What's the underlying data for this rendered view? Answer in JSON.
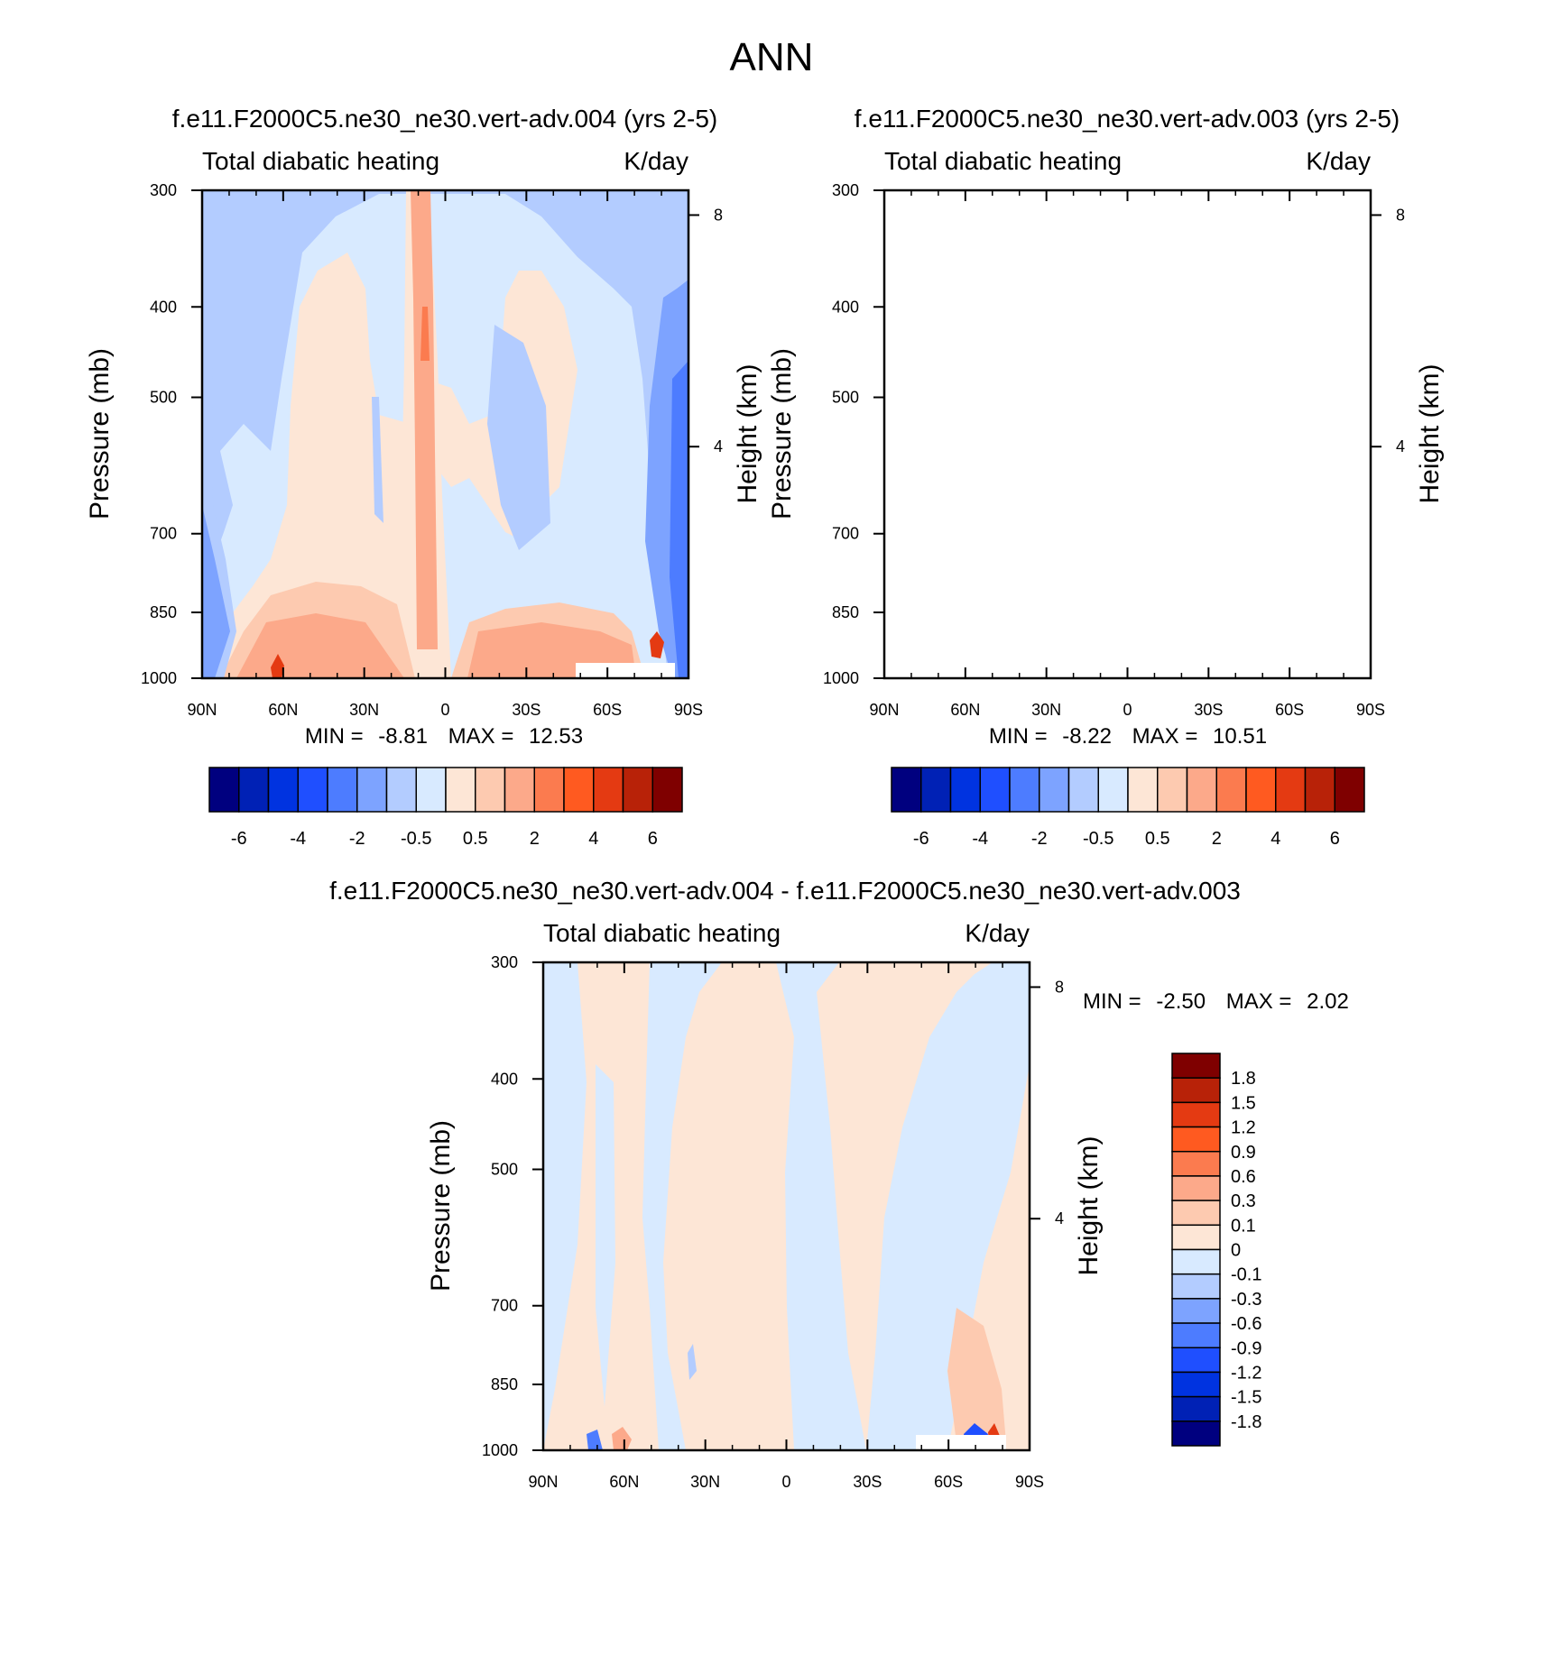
{
  "page_title": "ANN",
  "colors": {
    "main_scale": [
      "#00007f",
      "#0021b5",
      "#0033e0",
      "#1f4fff",
      "#4d7cff",
      "#7da3ff",
      "#b3ccff",
      "#d8eaff",
      "#fde6d6",
      "#fdcab0",
      "#fca98a",
      "#fb7b4f",
      "#ff5a20",
      "#e43a12",
      "#b82208",
      "#7f0000"
    ],
    "diff_scale": [
      "#00007f",
      "#0021b5",
      "#0033e0",
      "#1f4fff",
      "#4d7cff",
      "#7da3ff",
      "#b3ccff",
      "#d8eaff",
      "#fde6d6",
      "#fdcab0",
      "#fca98a",
      "#fb7b4f",
      "#ff5a20",
      "#e43a12",
      "#b82208",
      "#7f0000"
    ]
  },
  "chart_data": [
    {
      "type": "heatmap",
      "title": "f.e11.F2000C5.ne30_ne30.vert-adv.004 (yrs 2-5)",
      "left_label": "Total diabatic heating",
      "right_label": "K/day",
      "ylabel": "Pressure (mb)",
      "ylabel_right": "Height (km)",
      "x_ticks": [
        "90N",
        "60N",
        "30N",
        "0",
        "30S",
        "60S",
        "90S"
      ],
      "x_range": [
        90,
        -90
      ],
      "y_ticks": [
        "300",
        "400",
        "500",
        "700",
        "850",
        "1000"
      ],
      "y_values": [
        300,
        400,
        500,
        700,
        850,
        1000
      ],
      "y_range": [
        300,
        1000
      ],
      "y_scale": "log",
      "height_ticks": [
        "8",
        "4"
      ],
      "stats": {
        "min_label": "MIN =",
        "min": "-8.81",
        "max_label": "MAX =",
        "max": "12.53"
      },
      "colorbar_labels": [
        "-6",
        "-4",
        "-2",
        "-0.5",
        "0.5",
        "2",
        "4",
        "6"
      ],
      "colorbar_levels": [
        -6,
        -5,
        -4,
        -3,
        -2,
        -1,
        -0.5,
        0,
        0.5,
        1,
        2,
        3,
        4,
        5,
        6
      ]
    },
    {
      "type": "heatmap",
      "title": "f.e11.F2000C5.ne30_ne30.vert-adv.003 (yrs 2-5)",
      "left_label": "Total diabatic heating",
      "right_label": "K/day",
      "ylabel": "Pressure (mb)",
      "ylabel_right": "Height (km)",
      "x_ticks": [
        "90N",
        "60N",
        "30N",
        "0",
        "30S",
        "60S",
        "90S"
      ],
      "x_range": [
        90,
        -90
      ],
      "y_ticks": [
        "300",
        "400",
        "500",
        "700",
        "850",
        "1000"
      ],
      "y_values": [
        300,
        400,
        500,
        700,
        850,
        1000
      ],
      "y_range": [
        300,
        1000
      ],
      "y_scale": "log",
      "height_ticks": [
        "8",
        "4"
      ],
      "stats": {
        "min_label": "MIN =",
        "min": "-8.22",
        "max_label": "MAX =",
        "max": "10.51"
      },
      "colorbar_labels": [
        "-6",
        "-4",
        "-2",
        "-0.5",
        "0.5",
        "2",
        "4",
        "6"
      ],
      "colorbar_levels": [
        -6,
        -5,
        -4,
        -3,
        -2,
        -1,
        -0.5,
        0,
        0.5,
        1,
        2,
        3,
        4,
        5,
        6
      ]
    },
    {
      "type": "heatmap",
      "title": "f.e11.F2000C5.ne30_ne30.vert-adv.004 - f.e11.F2000C5.ne30_ne30.vert-adv.003",
      "left_label": "Total diabatic heating",
      "right_label": "K/day",
      "ylabel": "Pressure (mb)",
      "ylabel_right": "Height (km)",
      "x_ticks": [
        "90N",
        "60N",
        "30N",
        "0",
        "30S",
        "60S",
        "90S"
      ],
      "x_range": [
        90,
        -90
      ],
      "y_ticks": [
        "300",
        "400",
        "500",
        "700",
        "850",
        "1000"
      ],
      "y_values": [
        300,
        400,
        500,
        700,
        850,
        1000
      ],
      "y_range": [
        300,
        1000
      ],
      "y_scale": "log",
      "height_ticks": [
        "8",
        "4"
      ],
      "stats": {
        "min_label": "MIN =",
        "min": "-2.50",
        "max_label": "MAX =",
        "max": "2.02"
      },
      "colorbar_labels": [
        "1.8",
        "1.5",
        "1.2",
        "0.9",
        "0.6",
        "0.3",
        "0.1",
        "0",
        "-0.1",
        "-0.3",
        "-0.6",
        "-0.9",
        "-1.2",
        "-1.5",
        "-1.8"
      ],
      "colorbar_levels": [
        1.8,
        1.5,
        1.2,
        0.9,
        0.6,
        0.3,
        0.1,
        0,
        -0.1,
        -0.3,
        -0.6,
        -0.9,
        -1.2,
        -1.5,
        -1.8
      ]
    }
  ]
}
